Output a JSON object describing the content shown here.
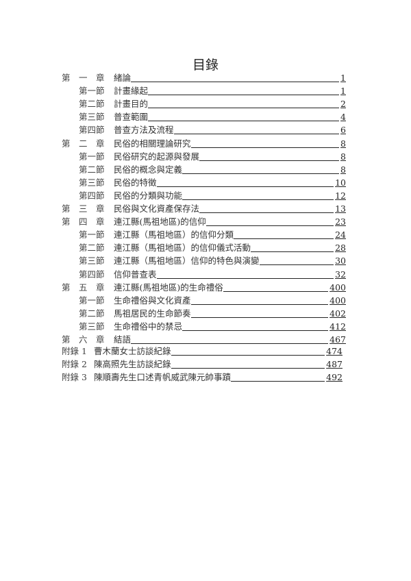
{
  "title": "目錄",
  "toc": [
    {
      "type": "ch",
      "label": "第　一　章",
      "title": "緒論",
      "page": "1"
    },
    {
      "type": "sec",
      "label": "第一節",
      "title": "計畫緣起",
      "page": "1"
    },
    {
      "type": "sec",
      "label": "第二節",
      "title": "計畫目的",
      "page": "2"
    },
    {
      "type": "sec",
      "label": "第三節",
      "title": "普查範圍",
      "page": "4"
    },
    {
      "type": "sec",
      "label": "第四節",
      "title": "普查方法及流程",
      "page": "6"
    },
    {
      "type": "ch",
      "label": "第　二　章",
      "title": "民俗的相關理論研究",
      "page": "8"
    },
    {
      "type": "sec",
      "label": "第一節",
      "title": "民俗研究的起源與發展",
      "page": "8"
    },
    {
      "type": "sec",
      "label": "第二節",
      "title": "民俗的概念與定義",
      "page": "8"
    },
    {
      "type": "sec",
      "label": "第三節",
      "title": "民俗的特徵",
      "page": "10"
    },
    {
      "type": "sec",
      "label": "第四節",
      "title": "民俗的分類與功能",
      "page": "12"
    },
    {
      "type": "ch",
      "label": "第　三　章",
      "title": "民俗與文化資產保存法",
      "page": "13"
    },
    {
      "type": "ch",
      "label": "第　四　章",
      "title": "連江縣(馬祖地區)的信仰",
      "page": "23"
    },
    {
      "type": "sec",
      "label": "第一節",
      "title": "連江縣（馬祖地區）的信仰分類",
      "page": "24"
    },
    {
      "type": "sec",
      "label": "第二節",
      "title": "連江縣（馬祖地區）的信仰儀式活動",
      "page": "28"
    },
    {
      "type": "sec",
      "label": "第三節",
      "title": "連江縣（馬祖地區）信仰的特色與演變",
      "page": "30"
    },
    {
      "type": "sec",
      "label": "第四節",
      "title": "信仰普查表",
      "page": "32"
    },
    {
      "type": "ch",
      "label": "第　五　章",
      "title": "連江縣(馬祖地區)的生命禮俗",
      "page": "400"
    },
    {
      "type": "sec",
      "label": "第一節",
      "title": "生命禮俗與文化資產",
      "page": "400"
    },
    {
      "type": "sec",
      "label": "第二節",
      "title": "馬祖居民的生命節奏",
      "page": "402"
    },
    {
      "type": "sec",
      "label": "第三節",
      "title": "生命禮俗中的禁忌",
      "page": "412"
    },
    {
      "type": "ch",
      "label": "第　六　章",
      "title": "結語",
      "page": "467"
    }
  ],
  "appendix": [
    {
      "label": "附錄 1",
      "title": "曹木蘭女士訪談紀錄",
      "page": "474"
    },
    {
      "label": "附錄 2",
      "title": "陳高照先生訪談紀錄",
      "page": "487"
    },
    {
      "label": "附錄 3",
      "title": "陳順壽先生口述青帆威武陳元帥事蹟",
      "page": "492"
    }
  ]
}
